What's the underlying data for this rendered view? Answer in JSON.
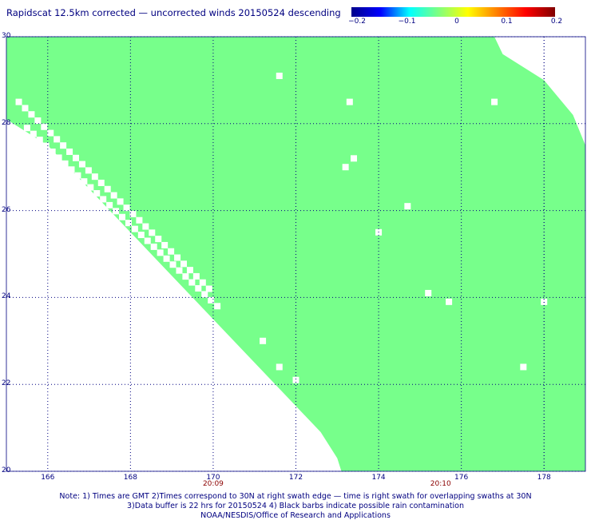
{
  "title": "Rapidscat 12.5km corrected — uncorrected winds 20150524 descending",
  "colors": {
    "fill": "#77ff8b",
    "grid": "#000080",
    "text": "#000080",
    "time_text": "#8b0000"
  },
  "colorbar": {
    "ticks": [
      "−0.2",
      "−0.1",
      "0",
      "0.1",
      "0.2"
    ],
    "stops": [
      "#00008b",
      "#0000ff",
      "#00ffff",
      "#7fff7f",
      "#ffff00",
      "#ff7f00",
      "#ff0000",
      "#800000"
    ]
  },
  "axes": {
    "x_ticks": [
      "166",
      "168",
      "170",
      "172",
      "174",
      "176",
      "178"
    ],
    "y_ticks": [
      "30",
      "28",
      "26",
      "24",
      "22",
      "20"
    ],
    "xlim": [
      165,
      179
    ],
    "ylim": [
      20,
      30
    ]
  },
  "time_labels": [
    {
      "lon": 170.0,
      "text": "20:09"
    },
    {
      "lon": 175.5,
      "text": "20:10"
    }
  ],
  "swath": {
    "left_edge": [
      [
        30,
        165
      ],
      [
        28.1,
        165
      ],
      [
        27.5,
        166
      ],
      [
        26.5,
        167
      ],
      [
        25.5,
        168
      ],
      [
        24.5,
        169
      ],
      [
        23.5,
        170
      ],
      [
        22.5,
        171
      ],
      [
        21.5,
        172
      ],
      [
        20.9,
        172.6
      ],
      [
        20.3,
        173
      ],
      [
        20,
        173.1
      ]
    ],
    "right_edge": [
      [
        30,
        176.8
      ],
      [
        29.6,
        177
      ],
      [
        29,
        178
      ],
      [
        28.2,
        178.7
      ],
      [
        27.5,
        179
      ],
      [
        20,
        179
      ]
    ],
    "gap_strips": [
      [
        [
          28.5,
          165.3
        ],
        [
          24.2,
          169.9
        ]
      ],
      [
        [
          27.9,
          165.5
        ],
        [
          23.8,
          170.1
        ]
      ]
    ],
    "missing_cells": [
      [
        29.1,
        171.6
      ],
      [
        28.5,
        173.3
      ],
      [
        28.5,
        176.8
      ],
      [
        27.2,
        173.4
      ],
      [
        27.0,
        173.2
      ],
      [
        26.1,
        174.7
      ],
      [
        25.5,
        174.0
      ],
      [
        24.1,
        175.2
      ],
      [
        23.9,
        175.7
      ],
      [
        23.9,
        178.0
      ],
      [
        23.0,
        171.2
      ],
      [
        22.4,
        171.6
      ],
      [
        22.4,
        177.5
      ],
      [
        22.1,
        172.0
      ]
    ]
  },
  "notes": [
    "Note: 1) Times are GMT 2)Times correspond to 30N at right swath edge — time is right swath for overlapping swaths at 30N",
    "3)Data buffer is 22 hrs for 20150524 4) Black barbs indicate possible rain contamination",
    "NOAA/NESDIS/Office of Research and Applications"
  ]
}
